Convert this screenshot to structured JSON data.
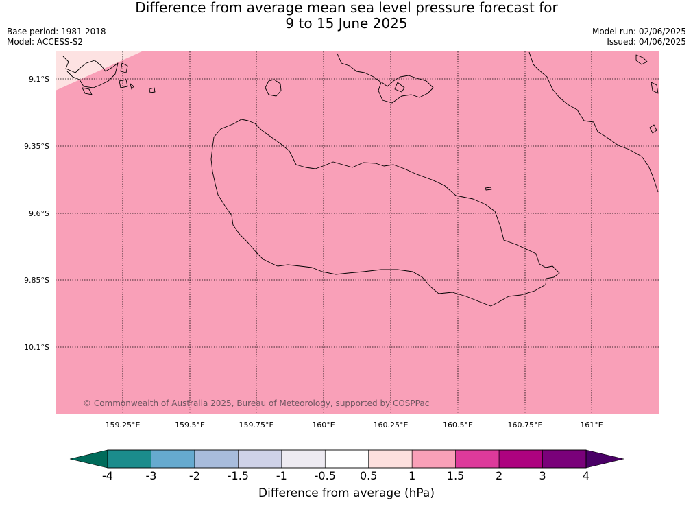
{
  "title_line1": "Difference from average mean sea level pressure forecast for",
  "title_line2": "9 to 15 June 2025",
  "meta_left": {
    "base_period": "Base period: 1981-2018",
    "model": "Model: ACCESS-S2"
  },
  "meta_right": {
    "model_run": "Model run: 02/06/2025",
    "issued": "Issued: 04/06/2025"
  },
  "map": {
    "fill_main": "#f9a0b8",
    "fill_corner": "#fde2e2",
    "lat_labels": [
      "9.1°S",
      "9.35°S",
      "9.6°S",
      "9.85°S",
      "10.1°S"
    ],
    "lon_labels": [
      "159.25°E",
      "159.5°E",
      "159.75°E",
      "160°E",
      "160.25°E",
      "160.5°E",
      "160.75°E",
      "161°E"
    ],
    "copyright": "© Commonwealth of Australia 2025, Bureau of Meteorology, supported by COSPPac"
  },
  "colorbar": {
    "title": "Difference from average (hPa)",
    "ticks": [
      "-4",
      "-3",
      "-2",
      "-1.5",
      "-1",
      "-0.5",
      "0.5",
      "1",
      "1.5",
      "2",
      "3",
      "4"
    ],
    "colors": [
      "#1b8c8c",
      "#66aacf",
      "#a8bcdc",
      "#cfd2e8",
      "#eeebf2",
      "#ffffff",
      "#fde0de",
      "#f9a0b8",
      "#dd3a9b",
      "#ad027f",
      "#7a017a"
    ],
    "under_color": "#006b5a",
    "over_color": "#4a0066"
  }
}
